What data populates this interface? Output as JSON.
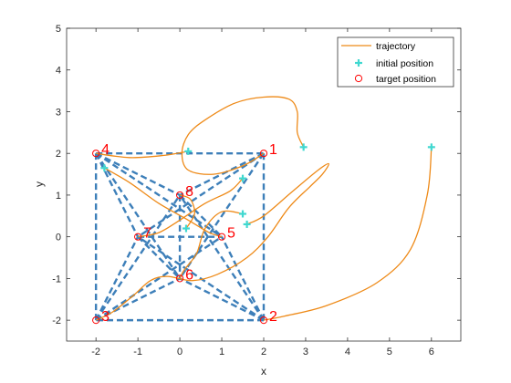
{
  "chart_data": {
    "type": "line",
    "xlabel": "x",
    "ylabel": "y",
    "xlim": [
      -2.7,
      6.7
    ],
    "ylim": [
      -2.5,
      5
    ],
    "xticks": [
      -2,
      -1,
      0,
      1,
      2,
      3,
      4,
      5,
      6
    ],
    "yticks": [
      -2,
      -1,
      0,
      1,
      2,
      3,
      4,
      5
    ],
    "grid": false,
    "legend_position": "top-right",
    "legend": {
      "trajectory": "trajectory",
      "initial": "initial position",
      "target": "target position"
    },
    "colors": {
      "trajectory": "#ee8a18",
      "initial": "#40d8d0",
      "target": "#ff0000",
      "formation": "#3d7fb9"
    },
    "target_positions": [
      {
        "label": "1",
        "x": 2,
        "y": 2
      },
      {
        "label": "2",
        "x": 2,
        "y": -2
      },
      {
        "label": "3",
        "x": -2,
        "y": -2
      },
      {
        "label": "4",
        "x": -2,
        "y": 2
      },
      {
        "label": "5",
        "x": 1,
        "y": 0
      },
      {
        "label": "6",
        "x": 0,
        "y": -1
      },
      {
        "label": "7",
        "x": -1,
        "y": 0
      },
      {
        "label": "8",
        "x": 0,
        "y": 1
      }
    ],
    "initial_positions": [
      {
        "x": 2.95,
        "y": 2.15
      },
      {
        "x": 6.0,
        "y": 2.15
      },
      {
        "x": 0.2,
        "y": 2.05
      },
      {
        "x": 1.5,
        "y": 1.4
      },
      {
        "x": 1.5,
        "y": 0.55
      },
      {
        "x": 1.6,
        "y": 0.3
      },
      {
        "x": 0.15,
        "y": 0.2
      },
      {
        "x": -1.8,
        "y": 1.65
      }
    ],
    "trajectories": [
      [
        [
          2.95,
          2.15
        ],
        [
          2.8,
          2.5
        ],
        [
          2.8,
          3.0
        ],
        [
          2.6,
          3.3
        ],
        [
          2.0,
          3.35
        ],
        [
          1.3,
          3.2
        ],
        [
          0.6,
          2.8
        ],
        [
          0.2,
          2.45
        ],
        [
          0.05,
          2.0
        ],
        [
          0.2,
          1.6
        ],
        [
          0.8,
          1.5
        ],
        [
          1.5,
          1.7
        ],
        [
          2.0,
          2.0
        ]
      ],
      [
        [
          6.0,
          2.15
        ],
        [
          5.9,
          1.0
        ],
        [
          5.5,
          -0.3
        ],
        [
          4.7,
          -1.1
        ],
        [
          3.5,
          -1.65
        ],
        [
          2.5,
          -1.9
        ],
        [
          2.0,
          -2.0
        ]
      ],
      [
        [
          0.2,
          2.05
        ],
        [
          -0.4,
          1.95
        ],
        [
          -1.2,
          1.9
        ],
        [
          -2.0,
          2.0
        ]
      ],
      [
        [
          1.5,
          1.4
        ],
        [
          1.2,
          1.1
        ],
        [
          0.6,
          0.8
        ],
        [
          0.0,
          0.4
        ],
        [
          -0.5,
          0.1
        ],
        [
          -1.0,
          0.0
        ]
      ],
      [
        [
          1.5,
          0.55
        ],
        [
          1.0,
          0.6
        ],
        [
          0.6,
          0.2
        ],
        [
          0.4,
          -0.4
        ],
        [
          0.1,
          -0.8
        ],
        [
          0.0,
          -1.0
        ]
      ],
      [
        [
          1.6,
          0.3
        ],
        [
          2.0,
          0.5
        ],
        [
          2.7,
          1.1
        ],
        [
          3.3,
          1.6
        ],
        [
          3.55,
          1.75
        ],
        [
          3.4,
          1.5
        ],
        [
          3.1,
          1.2
        ],
        [
          2.6,
          0.7
        ],
        [
          2.1,
          0.0
        ],
        [
          1.6,
          -0.5
        ],
        [
          0.9,
          -0.9
        ],
        [
          0.3,
          -1.05
        ],
        [
          -0.3,
          -0.95
        ],
        [
          -0.7,
          -1.05
        ],
        [
          -1.1,
          -1.4
        ],
        [
          -1.6,
          -1.8
        ],
        [
          -2.0,
          -2.0
        ]
      ],
      [
        [
          0.15,
          0.2
        ],
        [
          0.35,
          0.55
        ],
        [
          0.25,
          0.9
        ],
        [
          0.0,
          1.0
        ]
      ],
      [
        [
          -1.8,
          1.65
        ],
        [
          -1.2,
          1.3
        ],
        [
          -0.5,
          0.8
        ],
        [
          0.2,
          0.4
        ],
        [
          0.7,
          0.1
        ],
        [
          1.0,
          0.0
        ]
      ]
    ],
    "formation_edges": [
      [
        [
          -2,
          2
        ],
        [
          2,
          2
        ]
      ],
      [
        [
          2,
          2
        ],
        [
          2,
          -2
        ]
      ],
      [
        [
          2,
          -2
        ],
        [
          -2,
          -2
        ]
      ],
      [
        [
          -2,
          -2
        ],
        [
          -2,
          2
        ]
      ],
      [
        [
          -1,
          0
        ],
        [
          1,
          0
        ]
      ],
      [
        [
          0,
          1
        ],
        [
          0,
          -1
        ]
      ],
      [
        [
          -2,
          2
        ],
        [
          1,
          0
        ]
      ],
      [
        [
          -2,
          2
        ],
        [
          0,
          -1
        ]
      ],
      [
        [
          -2,
          2
        ],
        [
          -1,
          0
        ]
      ],
      [
        [
          -2,
          2
        ],
        [
          0,
          1
        ]
      ],
      [
        [
          2,
          2
        ],
        [
          -1,
          0
        ]
      ],
      [
        [
          2,
          2
        ],
        [
          0,
          -1
        ]
      ],
      [
        [
          2,
          2
        ],
        [
          0,
          1
        ]
      ],
      [
        [
          2,
          -2
        ],
        [
          -1,
          0
        ]
      ],
      [
        [
          2,
          -2
        ],
        [
          0,
          1
        ]
      ],
      [
        [
          2,
          -2
        ],
        [
          1,
          0
        ]
      ],
      [
        [
          2,
          -2
        ],
        [
          0,
          -1
        ]
      ],
      [
        [
          -2,
          -2
        ],
        [
          0,
          1
        ]
      ],
      [
        [
          -2,
          -2
        ],
        [
          1,
          0
        ]
      ],
      [
        [
          -2,
          -2
        ],
        [
          -1,
          0
        ]
      ],
      [
        [
          -2,
          -2
        ],
        [
          0,
          -1
        ]
      ],
      [
        [
          -1,
          0
        ],
        [
          0,
          -1
        ]
      ],
      [
        [
          0,
          1
        ],
        [
          1,
          0
        ]
      ]
    ]
  }
}
